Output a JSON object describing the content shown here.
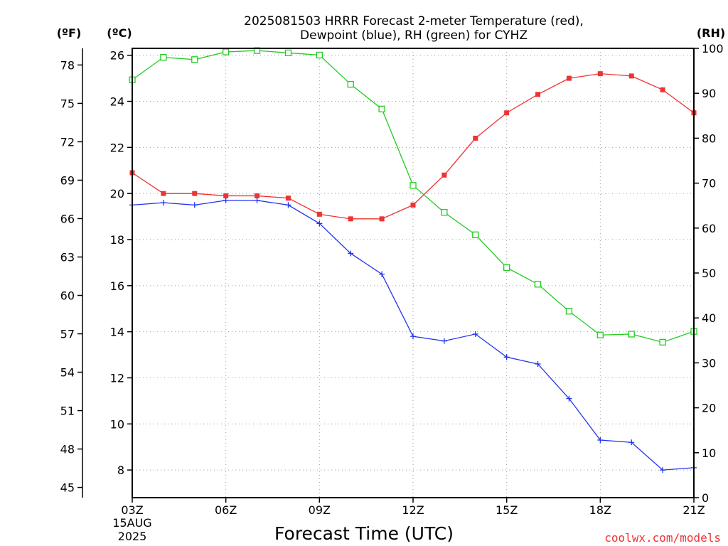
{
  "title_lines": [
    "2025081503 HRRR Forecast 2-meter Temperature (red),",
    "Dewpoint (blue), RH (green) for CYHZ"
  ],
  "unit_labels": {
    "fahrenheit": "(ºF)",
    "celsius": "(ºC)",
    "rh": "(RH)"
  },
  "x_axis_label": "Forecast Time (UTC)",
  "date_labels": [
    "15AUG",
    "2025"
  ],
  "credit": "coolwx.com/models",
  "colors": {
    "temperature": "#ee3333",
    "dewpoint": "#2233ee",
    "rh": "#22cc22",
    "grid": "#999999"
  },
  "chart_data": {
    "type": "line",
    "x": [
      "03Z",
      "04Z",
      "05Z",
      "06Z",
      "07Z",
      "08Z",
      "09Z",
      "10Z",
      "11Z",
      "12Z",
      "13Z",
      "14Z",
      "15Z",
      "16Z",
      "17Z",
      "18Z",
      "19Z",
      "20Z",
      "21Z"
    ],
    "x_tick_labels": [
      "03Z",
      "06Z",
      "09Z",
      "12Z",
      "15Z",
      "18Z",
      "21Z"
    ],
    "y_left_celsius": {
      "range": [
        6.8,
        26.3
      ],
      "ticks": [
        "8",
        "10",
        "12",
        "14",
        "16",
        "18",
        "20",
        "22",
        "24",
        "26"
      ]
    },
    "y_left_fahrenheit": {
      "range": [
        44.2,
        79.3
      ],
      "ticks": [
        "45",
        "48",
        "51",
        "54",
        "57",
        "60",
        "63",
        "66",
        "69",
        "72",
        "75",
        "78"
      ]
    },
    "y_right_rh": {
      "range": [
        0,
        100
      ],
      "ticks": [
        "0",
        "10",
        "20",
        "30",
        "40",
        "50",
        "60",
        "70",
        "80",
        "90",
        "100"
      ]
    },
    "grid": true,
    "series": [
      {
        "key": "temperature",
        "axis": "celsius",
        "marker": "filled-square",
        "values": [
          20.9,
          20.0,
          20.0,
          19.9,
          19.9,
          19.8,
          19.1,
          18.9,
          18.9,
          19.5,
          20.8,
          22.4,
          23.5,
          24.3,
          25.0,
          25.2,
          25.1,
          24.5,
          23.5
        ]
      },
      {
        "key": "dewpoint",
        "axis": "celsius",
        "marker": "plus",
        "values": [
          19.5,
          19.6,
          19.5,
          19.7,
          19.7,
          19.5,
          18.7,
          17.4,
          16.5,
          13.8,
          13.6,
          13.9,
          12.9,
          12.6,
          11.1,
          9.3,
          9.2,
          8.0,
          8.1
        ]
      },
      {
        "key": "rh",
        "axis": "rh",
        "marker": "open-square",
        "values": [
          93,
          98,
          97.5,
          99.2,
          99.5,
          99,
          98.5,
          92,
          86.5,
          69.5,
          63.5,
          58.5,
          51.2,
          47.5,
          41.5,
          36.2,
          36.4,
          34.6,
          37
        ]
      }
    ]
  }
}
